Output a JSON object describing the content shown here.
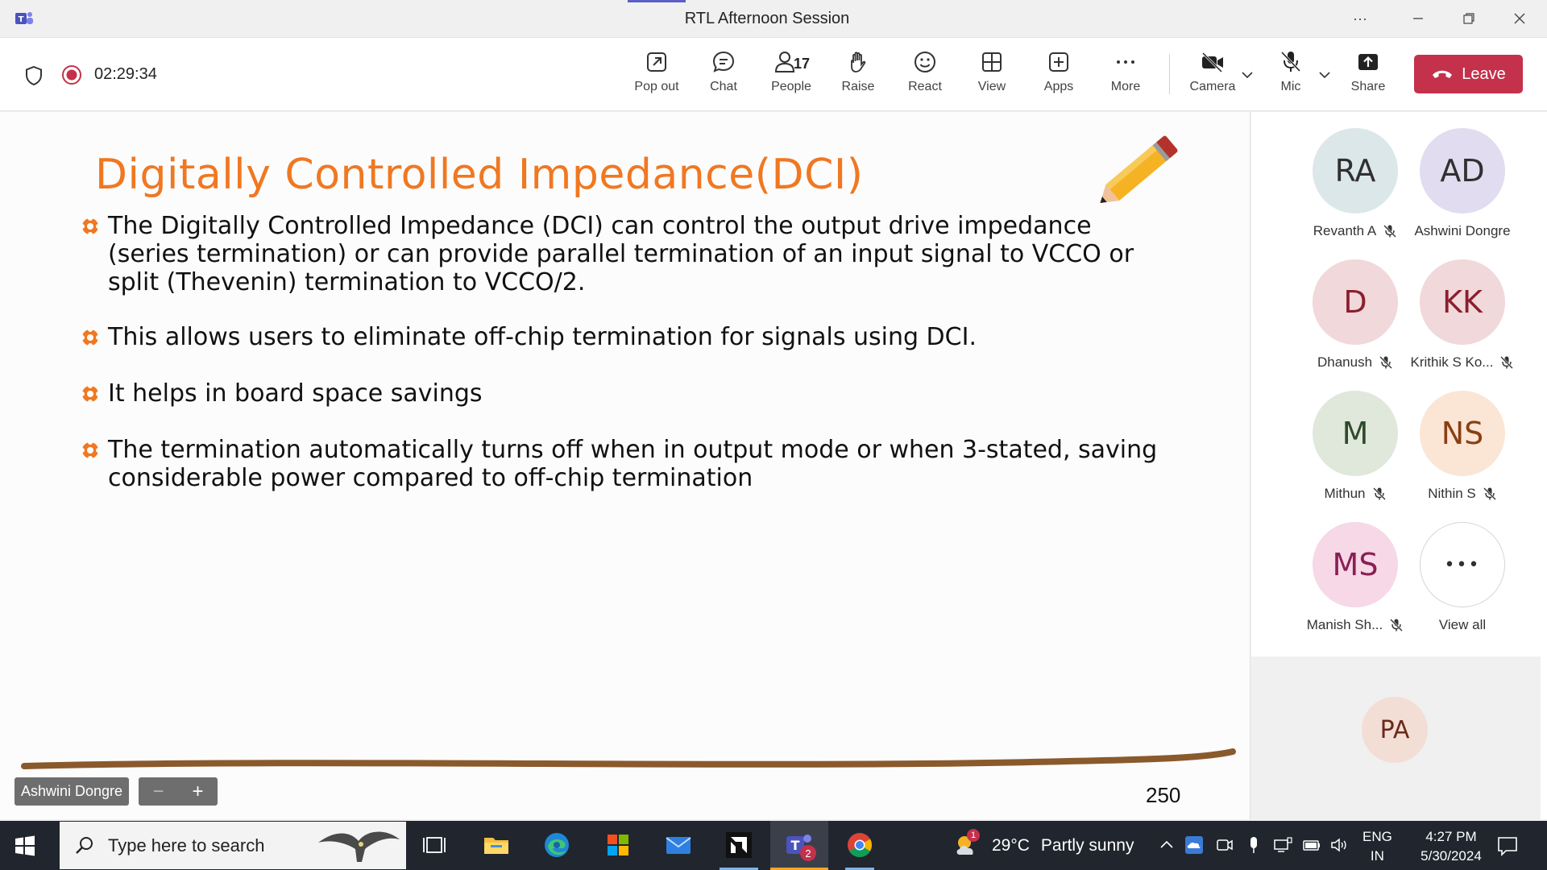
{
  "window": {
    "title": "RTL Afternoon Session"
  },
  "meeting": {
    "timer": "02:29:34"
  },
  "toolbar": {
    "pop_out": "Pop out",
    "chat": "Chat",
    "people": "People",
    "people_count": "17",
    "raise": "Raise",
    "react": "React",
    "view": "View",
    "apps": "Apps",
    "more": "More",
    "camera": "Camera",
    "mic": "Mic",
    "share": "Share",
    "leave": "Leave"
  },
  "slide": {
    "title": "Digitally Controlled Impedance(DCI)",
    "bullets": [
      "The  Digitally Controlled Impedance (DCI) can control the output drive impedance (series termination) or can provide parallel termination of an input signal to VCCO or split (Thevenin) termination to VCCO/2.",
      "This allows users to eliminate off-chip termination for signals using DCI.",
      "It helps in  board space savings",
      "The termination automatically turns off when in output mode or when 3-stated, saving considerable power compared to off-chip termination"
    ],
    "page_number": "250",
    "presenter": "Ashwini Dongre",
    "accent_color": "#f07821"
  },
  "participants": [
    {
      "initials": "RA",
      "name": "Revanth A",
      "muted": true,
      "color": "#dce7ea"
    },
    {
      "initials": "AD",
      "name": "Ashwini Dongre",
      "muted": false,
      "color": "#e1dcef"
    },
    {
      "initials": "D",
      "name": "Dhanush",
      "muted": true,
      "color": "#f1d8da"
    },
    {
      "initials": "KK",
      "name": "Krithik S Ko...",
      "muted": true,
      "color": "#f1d8da"
    },
    {
      "initials": "M",
      "name": "Mithun",
      "muted": true,
      "color": "#e0e8dc"
    },
    {
      "initials": "NS",
      "name": "Nithin S",
      "muted": true,
      "color": "#fbe6d6"
    },
    {
      "initials": "MS",
      "name": "Manish Sh...",
      "muted": true,
      "color": "#f6d8e6"
    }
  ],
  "view_all": {
    "label": "View all",
    "glyph": "•••"
  },
  "self_tile": {
    "initials": "PA"
  },
  "taskbar": {
    "search_placeholder": "Type here to search",
    "teams_badge": "2",
    "weather_temp": "29°C",
    "weather_text": "Partly sunny",
    "weather_badge": "1",
    "lang_line1": "ENG",
    "lang_line2": "IN",
    "time": "4:27 PM",
    "date": "5/30/2024"
  }
}
